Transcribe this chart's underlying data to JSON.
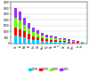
{
  "categories": [
    "Ce",
    "La",
    "Nd",
    "Pr",
    "Eu",
    "Gd",
    "Sm",
    "Dy",
    "Tb",
    "Er",
    "Y",
    "Yb",
    "Ho",
    "Tm",
    "Lu",
    "Sc"
  ],
  "series": {
    "2018": [
      650,
      580,
      480,
      380,
      290,
      240,
      190,
      160,
      140,
      120,
      100,
      85,
      70,
      55,
      40,
      25
    ],
    "2019": [
      720,
      640,
      520,
      410,
      310,
      260,
      210,
      175,
      155,
      130,
      110,
      92,
      76,
      60,
      44,
      28
    ],
    "2020": [
      800,
      710,
      580,
      450,
      340,
      285,
      230,
      195,
      170,
      145,
      120,
      100,
      83,
      66,
      48,
      31
    ],
    "2021": [
      850,
      760,
      620,
      490,
      370,
      310,
      250,
      215,
      185,
      160,
      132,
      110,
      91,
      72,
      52,
      34
    ]
  },
  "colors": {
    "2018": "#00CCFF",
    "2019": "#FF0000",
    "2020": "#66FF00",
    "2021": "#9933FF"
  },
  "ylim": [
    0,
    3500
  ],
  "yticks": [
    0,
    500,
    1000,
    1500,
    2000,
    2500,
    3000,
    3500
  ],
  "background_color": "#ffffff",
  "grid_color": "#cccccc",
  "legend_labels": [
    "2018",
    "2019",
    "2020",
    "2021"
  ]
}
